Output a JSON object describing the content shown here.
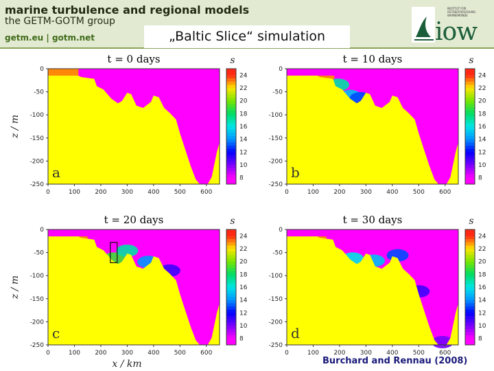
{
  "header": {
    "title_line1": "marine turbulence and regional models",
    "title_line2": "the GETM-GOTM group",
    "links": "getm.eu  |  gotm.net",
    "slide_title": "„Baltic Slice“ simulation",
    "logo_word": "iow",
    "logo_text": "INSTITUT FÜR OSTSEEFORSCHUNG WARNEMÜNDE"
  },
  "citation": "Burchard and Rennau (2008)",
  "colors": {
    "sediment": "#ffff00",
    "salt_high": "#ff4020",
    "salt_low": "#ff00ff",
    "header_bg": "#e3ead2"
  },
  "chart_data": [
    {
      "type": "heatmap",
      "panel": "a",
      "title": "t = 0 days",
      "colorbar_label": "s",
      "colorbar_ticks": [
        24,
        22,
        20,
        18,
        16,
        14,
        12,
        10,
        8
      ],
      "x_ticks": [
        0,
        100,
        200,
        300,
        400,
        500,
        600
      ],
      "y_ticks": [
        0,
        -50,
        -100,
        -150,
        -200,
        -250
      ],
      "xlim": [
        0,
        650
      ],
      "ylim": [
        -250,
        0
      ],
      "ylabel": "z / m",
      "xlabel": "",
      "inflow_layer": {
        "extent_km": [
          0,
          115
        ],
        "top_m": 0,
        "bottom_m": -22
      },
      "dense_plume": []
    },
    {
      "type": "heatmap",
      "panel": "b",
      "title": "t = 10 days",
      "colorbar_label": "s",
      "colorbar_ticks": [
        24,
        22,
        20,
        18,
        16,
        14,
        12,
        10,
        8
      ],
      "x_ticks": [
        0,
        100,
        200,
        300,
        400,
        500,
        600
      ],
      "y_ticks": [
        0,
        -50,
        -100,
        -150,
        -200,
        -250
      ],
      "xlim": [
        0,
        650
      ],
      "ylim": [
        -250,
        0
      ],
      "ylabel": "",
      "xlabel": "",
      "inflow_layer": {
        "extent_km": [
          0,
          180
        ],
        "top_m": -15,
        "bottom_m": -22
      },
      "dense_plume": [
        {
          "x_km": 195,
          "salinity": 17
        },
        {
          "x_km": 240,
          "salinity": 15
        },
        {
          "x_km": 280,
          "salinity": 13
        }
      ]
    },
    {
      "type": "heatmap",
      "panel": "c",
      "title": "t = 20 days",
      "colorbar_label": "s",
      "colorbar_ticks": [
        24,
        22,
        20,
        18,
        16,
        14,
        12,
        10,
        8
      ],
      "x_ticks": [
        0,
        100,
        200,
        300,
        400,
        500,
        600
      ],
      "y_ticks": [
        0,
        -50,
        -100,
        -150,
        -200,
        -250
      ],
      "xlim": [
        0,
        650
      ],
      "ylim": [
        -250,
        0
      ],
      "ylabel": "z / m",
      "xlabel": "x / km",
      "inflow_layer": {
        "extent_km": [
          0,
          150
        ],
        "top_m": -15,
        "bottom_m": -20
      },
      "dense_plume": [
        {
          "x_km": 250,
          "salinity": 19
        },
        {
          "x_km": 300,
          "salinity": 17
        },
        {
          "x_km": 380,
          "salinity": 14
        },
        {
          "x_km": 460,
          "salinity": 11
        }
      ],
      "annotation": "box near x = 250 km, z = -45 m"
    },
    {
      "type": "heatmap",
      "panel": "d",
      "title": "t = 30 days",
      "colorbar_label": "s",
      "colorbar_ticks": [
        24,
        22,
        20,
        18,
        16,
        14,
        12,
        10,
        8
      ],
      "x_ticks": [
        0,
        100,
        200,
        300,
        400,
        500,
        600
      ],
      "y_ticks": [
        0,
        -50,
        -100,
        -150,
        -200,
        -250
      ],
      "xlim": [
        0,
        650
      ],
      "ylim": [
        -250,
        0
      ],
      "ylabel": "",
      "xlabel": "",
      "inflow_layer": {
        "extent_km": [
          0,
          150
        ],
        "top_m": -15,
        "bottom_m": -20
      },
      "dense_plume": [
        {
          "x_km": 250,
          "salinity": 16
        },
        {
          "x_km": 330,
          "salinity": 15
        },
        {
          "x_km": 420,
          "salinity": 13
        },
        {
          "x_km": 500,
          "salinity": 11
        },
        {
          "x_km": 590,
          "salinity": 10
        }
      ]
    }
  ],
  "bathymetry_km_m": [
    [
      0,
      -15
    ],
    [
      115,
      -15
    ],
    [
      125,
      -18
    ],
    [
      175,
      -22
    ],
    [
      185,
      -38
    ],
    [
      210,
      -45
    ],
    [
      240,
      -65
    ],
    [
      265,
      -75
    ],
    [
      280,
      -70
    ],
    [
      300,
      -52
    ],
    [
      315,
      -55
    ],
    [
      335,
      -80
    ],
    [
      360,
      -85
    ],
    [
      390,
      -72
    ],
    [
      400,
      -58
    ],
    [
      420,
      -62
    ],
    [
      440,
      -85
    ],
    [
      460,
      -95
    ],
    [
      485,
      -110
    ],
    [
      500,
      -140
    ],
    [
      520,
      -175
    ],
    [
      540,
      -210
    ],
    [
      560,
      -240
    ],
    [
      575,
      -250
    ],
    [
      605,
      -250
    ],
    [
      620,
      -235
    ],
    [
      640,
      -180
    ],
    [
      650,
      -160
    ]
  ]
}
